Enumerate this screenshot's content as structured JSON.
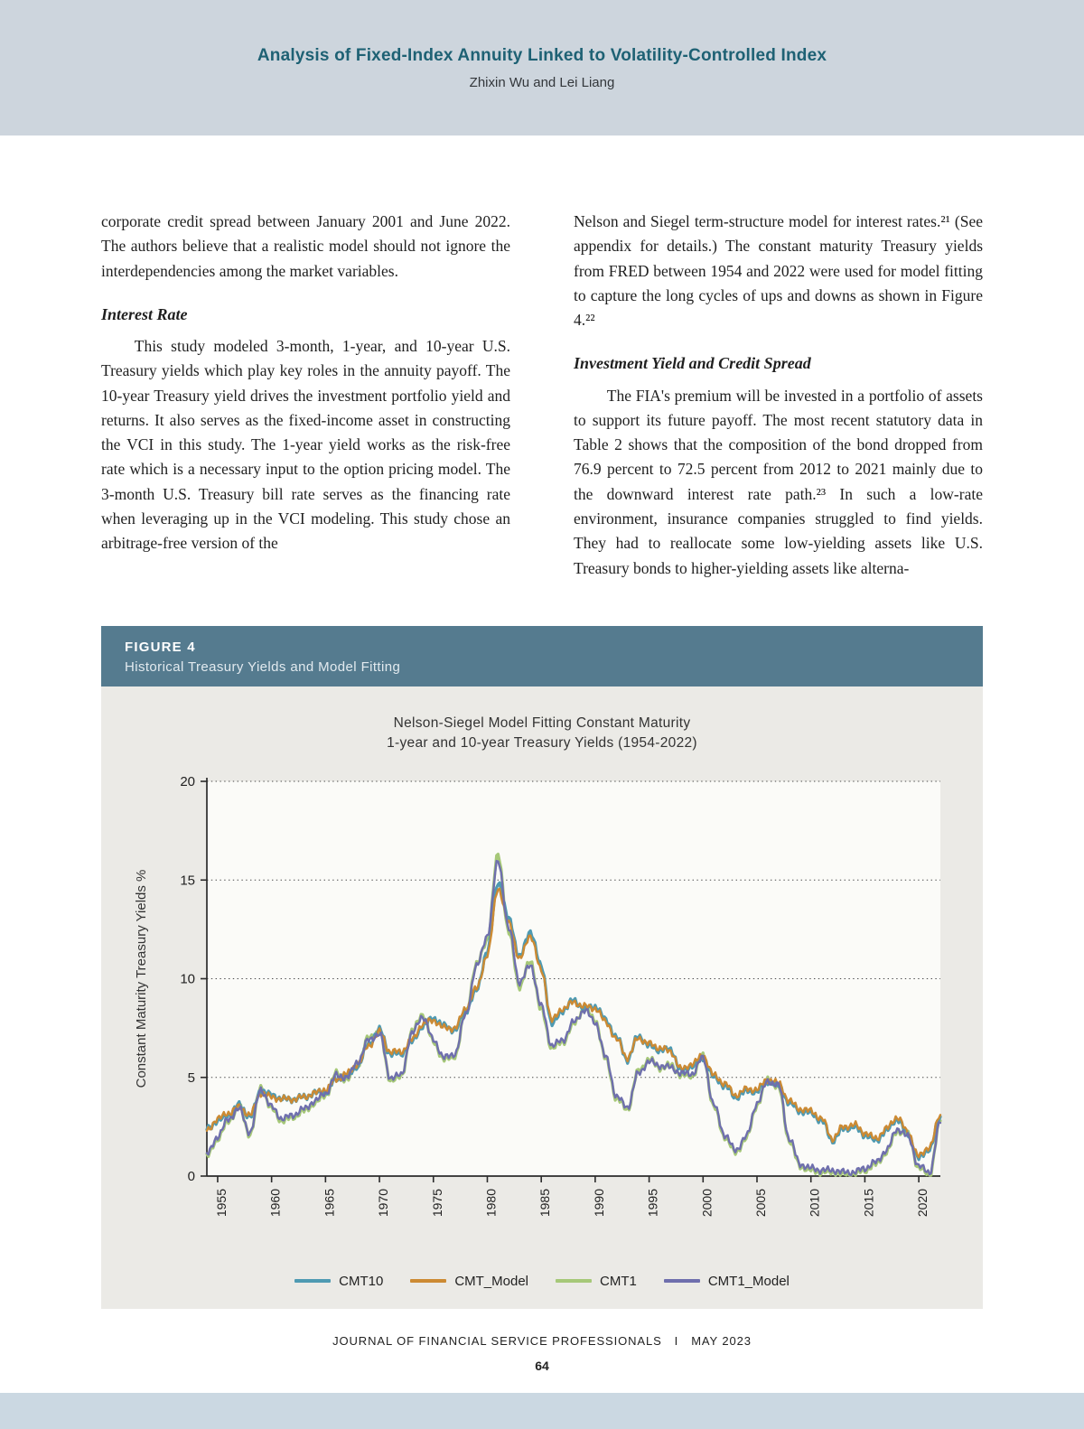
{
  "header": {
    "title": "Analysis of Fixed-Index Annuity Linked to Volatility-Controlled Index",
    "authors": "Zhixin Wu and Lei Liang"
  },
  "columns": {
    "left": {
      "para1": "corporate credit spread between January 2001 and June 2022. The authors believe that a realistic model should not ignore the interdependencies among the market variables.",
      "heading1": "Interest Rate",
      "para2": "This study modeled 3-month, 1-year, and 10-year U.S. Treasury yields which play key roles in the annuity payoff. The 10-year Treasury yield drives the investment portfolio yield and returns. It also serves as the fixed-income asset in constructing the VCI in this study. The 1-year yield works as the risk-free rate which is a necessary input to the option pricing model. The 3-month U.S. Treasury bill rate serves as the financing rate when leveraging up in the VCI modeling. This study chose an arbitrage-free version of the"
    },
    "right": {
      "para1": "Nelson and Siegel term-structure model for interest rates.²¹ (See appendix for details.) The constant maturity Treasury yields from FRED between 1954 and 2022 were used for model fitting to capture the long cycles of ups and downs as shown in Figure 4.²²",
      "heading1": "Investment Yield and Credit Spread",
      "para2": "The FIA's premium will be invested in a portfolio of assets to support its future payoff. The most recent statutory data in Table 2 shows that the composition of the bond dropped from 76.9 percent to 72.5 percent from 2012 to 2021 mainly due to the downward interest rate path.²³ In such a low-rate environment, insurance companies struggled to find yields. They had to reallocate some low-yielding assets like U.S. Treasury bonds to higher-yielding assets like alterna-"
    }
  },
  "figure": {
    "label": "FIGURE 4",
    "subtitle": "Historical Treasury Yields and Model Fitting"
  },
  "chart_data": {
    "type": "line",
    "title": "Nelson-Siegel Model Fitting Constant Maturity 1-year and 10-year Treasury Yields (1954-2022)",
    "title_lines": [
      "Nelson-Siegel Model Fitting Constant Maturity",
      "1-year and 10-year Treasury Yields (1954-2022)"
    ],
    "xlabel": "",
    "ylabel": "Constant Maturity Treasury Yields %",
    "ylim": [
      0,
      20
    ],
    "yticks": [
      0,
      5,
      10,
      15,
      20
    ],
    "xticks": [
      1955,
      1960,
      1965,
      1970,
      1975,
      1980,
      1985,
      1990,
      1995,
      2000,
      2005,
      2010,
      2015,
      2020
    ],
    "grid": "dotted-horizontal",
    "legend_position": "bottom",
    "x_years": [
      1954,
      1955,
      1956,
      1957,
      1958,
      1959,
      1960,
      1961,
      1962,
      1963,
      1964,
      1965,
      1966,
      1967,
      1968,
      1969,
      1970,
      1971,
      1972,
      1973,
      1974,
      1975,
      1976,
      1977,
      1978,
      1979,
      1980,
      1981,
      1982,
      1983,
      1984,
      1985,
      1986,
      1987,
      1988,
      1989,
      1990,
      1991,
      1992,
      1993,
      1994,
      1995,
      1996,
      1997,
      1998,
      1999,
      2000,
      2001,
      2002,
      2003,
      2004,
      2005,
      2006,
      2007,
      2008,
      2009,
      2010,
      2011,
      2012,
      2013,
      2014,
      2015,
      2016,
      2017,
      2018,
      2019,
      2020,
      2021,
      2022
    ],
    "series": [
      {
        "name": "CMT10",
        "color": "#4e9ab2",
        "values": [
          2.4,
          2.8,
          3.1,
          3.6,
          3.0,
          4.3,
          4.1,
          3.9,
          3.9,
          4.0,
          4.2,
          4.3,
          4.9,
          5.1,
          5.6,
          6.7,
          7.4,
          6.2,
          6.2,
          6.8,
          7.6,
          8.0,
          7.6,
          7.4,
          8.4,
          9.4,
          11.4,
          14.9,
          13.0,
          11.1,
          12.4,
          10.6,
          7.7,
          8.4,
          8.9,
          8.5,
          8.6,
          7.9,
          7.0,
          5.9,
          7.1,
          6.6,
          6.4,
          6.4,
          5.3,
          5.6,
          6.0,
          5.0,
          4.6,
          4.0,
          4.3,
          4.3,
          4.8,
          4.6,
          3.7,
          3.3,
          3.2,
          2.8,
          1.8,
          2.4,
          2.5,
          2.1,
          1.8,
          2.3,
          2.9,
          2.1,
          0.9,
          1.4,
          3.0
        ]
      },
      {
        "name": "CMT_Model",
        "color": "#cc8a33",
        "values": [
          2.3,
          2.9,
          3.2,
          3.5,
          3.1,
          4.2,
          4.0,
          3.9,
          3.9,
          4.0,
          4.2,
          4.4,
          4.9,
          5.2,
          5.7,
          6.6,
          7.3,
          6.3,
          6.3,
          6.9,
          7.7,
          7.9,
          7.5,
          7.5,
          8.5,
          9.5,
          11.2,
          14.6,
          12.8,
          11.0,
          12.2,
          10.4,
          7.9,
          8.5,
          8.8,
          8.6,
          8.5,
          7.8,
          6.9,
          6.0,
          7.0,
          6.7,
          6.5,
          6.3,
          5.4,
          5.7,
          6.1,
          5.1,
          4.7,
          4.1,
          4.4,
          4.4,
          4.9,
          4.7,
          3.8,
          3.4,
          3.3,
          2.9,
          1.9,
          2.5,
          2.6,
          2.2,
          1.9,
          2.4,
          3.0,
          2.2,
          1.0,
          1.5,
          3.1
        ]
      },
      {
        "name": "CMT1",
        "color": "#a6c878",
        "values": [
          1.0,
          1.9,
          2.8,
          3.5,
          2.1,
          4.5,
          3.4,
          2.8,
          3.0,
          3.3,
          3.7,
          4.1,
          5.2,
          4.9,
          5.7,
          7.0,
          7.3,
          4.9,
          5.0,
          7.3,
          8.2,
          6.8,
          5.9,
          6.1,
          8.3,
          10.7,
          12.0,
          16.3,
          12.3,
          9.6,
          10.9,
          8.4,
          6.5,
          6.8,
          7.7,
          8.5,
          7.9,
          5.9,
          3.9,
          3.4,
          5.3,
          5.9,
          5.5,
          5.6,
          5.1,
          5.1,
          6.1,
          3.5,
          2.0,
          1.2,
          1.9,
          3.6,
          4.9,
          4.5,
          1.8,
          0.5,
          0.3,
          0.2,
          0.2,
          0.1,
          0.1,
          0.3,
          0.6,
          1.2,
          2.3,
          2.1,
          0.4,
          0.1,
          2.8
        ]
      },
      {
        "name": "CMT1_Model",
        "color": "#6f6fad",
        "values": [
          1.1,
          2.0,
          2.9,
          3.4,
          2.2,
          4.4,
          3.5,
          2.9,
          3.1,
          3.4,
          3.8,
          4.2,
          5.1,
          5.0,
          5.8,
          6.9,
          7.2,
          5.0,
          5.1,
          7.2,
          8.1,
          6.9,
          6.0,
          6.2,
          8.2,
          10.6,
          12.2,
          16.0,
          12.5,
          9.8,
          10.7,
          8.6,
          6.6,
          6.9,
          7.8,
          8.4,
          7.8,
          6.0,
          4.0,
          3.5,
          5.2,
          5.8,
          5.6,
          5.5,
          5.2,
          5.2,
          6.0,
          3.6,
          2.1,
          1.3,
          2.0,
          3.7,
          4.8,
          4.6,
          1.9,
          0.6,
          0.4,
          0.3,
          0.3,
          0.2,
          0.2,
          0.4,
          0.7,
          1.3,
          2.4,
          2.0,
          0.5,
          0.2,
          2.7
        ]
      }
    ]
  },
  "footer": {
    "journal": "JOURNAL OF FINANCIAL SERVICE PROFESSIONALS",
    "separator": "I",
    "date": "MAY 2023",
    "page_number": "64"
  }
}
